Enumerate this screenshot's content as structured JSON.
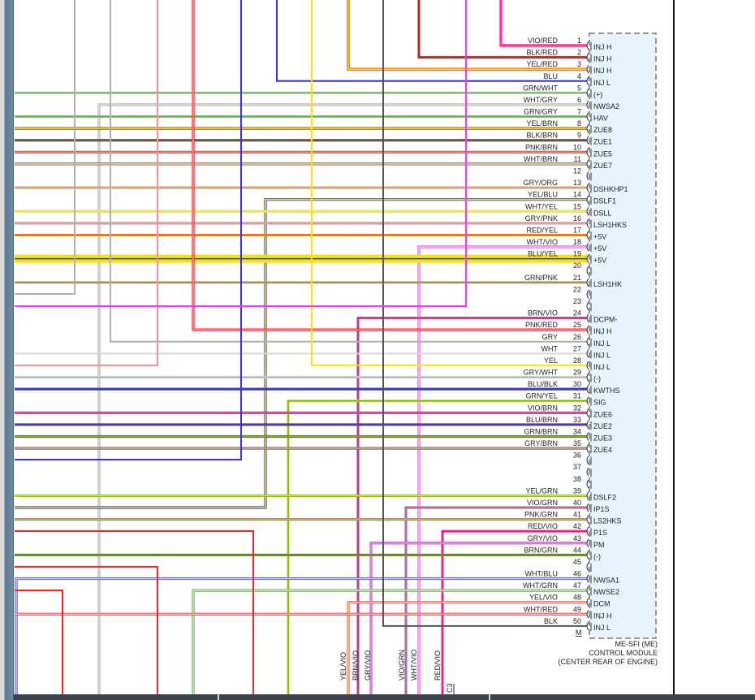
{
  "module": {
    "name_line1": "ME-SFI (ME)",
    "name_line2": "CONTROL MODULE",
    "name_line3": "(CENTER REAR OF ENGINE)",
    "ground_label": "M",
    "fill_color": "#e8f4fd"
  },
  "connector_label": "C3",
  "colors": {
    "VIO": "#ff33ff",
    "RED": "#ff2020",
    "BLK": "#555555",
    "YEL": "#f5e800",
    "BLU": "#3030ff",
    "GRN": "#5cb83c",
    "WHT": "#d8d8d8",
    "GRY": "#b0b0b0",
    "BRN": "#8b5a2b",
    "PNK": "#ff8a9a",
    "ORG": "#ff9a40"
  },
  "pins": [
    {
      "pin": "1",
      "wire": "VIO/RED",
      "func": "INJ H"
    },
    {
      "pin": "2",
      "wire": "BLK/RED",
      "func": "INJ H"
    },
    {
      "pin": "3",
      "wire": "YEL/RED",
      "func": "INJ H"
    },
    {
      "pin": "4",
      "wire": "BLU",
      "func": "INJ L"
    },
    {
      "pin": "5",
      "wire": "GRN/WHT",
      "func": "(+)"
    },
    {
      "pin": "6",
      "wire": "WHT/GRY",
      "func": "NWSA2"
    },
    {
      "pin": "7",
      "wire": "GRN/GRY",
      "func": "HAV"
    },
    {
      "pin": "8",
      "wire": "YEL/BRN",
      "func": "ZUE8"
    },
    {
      "pin": "9",
      "wire": "BLK/BRN",
      "func": "ZUE1"
    },
    {
      "pin": "10",
      "wire": "PNK/BRN",
      "func": "ZUE5"
    },
    {
      "pin": "11",
      "wire": "WHT/BRN",
      "func": "ZUE7"
    },
    {
      "pin": "12",
      "wire": "",
      "func": ""
    },
    {
      "pin": "13",
      "wire": "GRY/ORG",
      "func": "DSHKHP1"
    },
    {
      "pin": "14",
      "wire": "YEL/BLU",
      "func": "DSLF1"
    },
    {
      "pin": "15",
      "wire": "WHT/YEL",
      "func": "DSLL"
    },
    {
      "pin": "16",
      "wire": "GRY/PNK",
      "func": "LSH1HKS"
    },
    {
      "pin": "17",
      "wire": "RED/YEL",
      "func": "+5V"
    },
    {
      "pin": "18",
      "wire": "WHT/VIO",
      "func": "+5V"
    },
    {
      "pin": "19",
      "wire": "BLU/YEL",
      "func": "+5V"
    },
    {
      "pin": "20",
      "wire": "",
      "func": ""
    },
    {
      "pin": "21",
      "wire": "GRN/PNK",
      "func": "LSH1HK"
    },
    {
      "pin": "22",
      "wire": "",
      "func": ""
    },
    {
      "pin": "23",
      "wire": "",
      "func": ""
    },
    {
      "pin": "24",
      "wire": "BRN/VIO",
      "func": "DCPM-"
    },
    {
      "pin": "25",
      "wire": "PNK/RED",
      "func": "INJ H"
    },
    {
      "pin": "26",
      "wire": "GRY",
      "func": "INJ L"
    },
    {
      "pin": "27",
      "wire": "WHT",
      "func": "INJ L"
    },
    {
      "pin": "28",
      "wire": "YEL",
      "func": "INJ L"
    },
    {
      "pin": "29",
      "wire": "GRY/WHT",
      "func": "(-)"
    },
    {
      "pin": "30",
      "wire": "BLU/BLK",
      "func": "KWTHS"
    },
    {
      "pin": "31",
      "wire": "GRN/YEL",
      "func": "SIG"
    },
    {
      "pin": "32",
      "wire": "VIO/BRN",
      "func": "ZUE6"
    },
    {
      "pin": "33",
      "wire": "BLU/BRN",
      "func": "ZUE2"
    },
    {
      "pin": "34",
      "wire": "GRN/BRN",
      "func": "ZUE3"
    },
    {
      "pin": "35",
      "wire": "GRY/BRN",
      "func": "ZUE4"
    },
    {
      "pin": "36",
      "wire": "",
      "func": ""
    },
    {
      "pin": "37",
      "wire": "",
      "func": ""
    },
    {
      "pin": "38",
      "wire": "",
      "func": ""
    },
    {
      "pin": "39",
      "wire": "YEL/GRN",
      "func": "DSLF2"
    },
    {
      "pin": "40",
      "wire": "VIO/GRN",
      "func": "IP1S"
    },
    {
      "pin": "41",
      "wire": "PNK/GRN",
      "func": "LS2HKS"
    },
    {
      "pin": "42",
      "wire": "RED/VIO",
      "func": "P1S"
    },
    {
      "pin": "43",
      "wire": "GRY/VIO",
      "func": "PM"
    },
    {
      "pin": "44",
      "wire": "BRN/GRN",
      "func": "(-)"
    },
    {
      "pin": "45",
      "wire": "",
      "func": ""
    },
    {
      "pin": "46",
      "wire": "WHT/BLU",
      "func": "NWSA1"
    },
    {
      "pin": "47",
      "wire": "WHT/GRN",
      "func": "NWSE2"
    },
    {
      "pin": "48",
      "wire": "YEL/VIO",
      "func": "DCM"
    },
    {
      "pin": "49",
      "wire": "WHT/RED",
      "func": "INJ H"
    },
    {
      "pin": "50",
      "wire": "BLK",
      "func": "INJ L"
    }
  ],
  "bottom_wire_labels": [
    "YEL/VIO",
    "BRN/VIO",
    "GRY/VIO",
    "VIO/GRN",
    "WHT/VIO",
    "RED/VIO"
  ]
}
